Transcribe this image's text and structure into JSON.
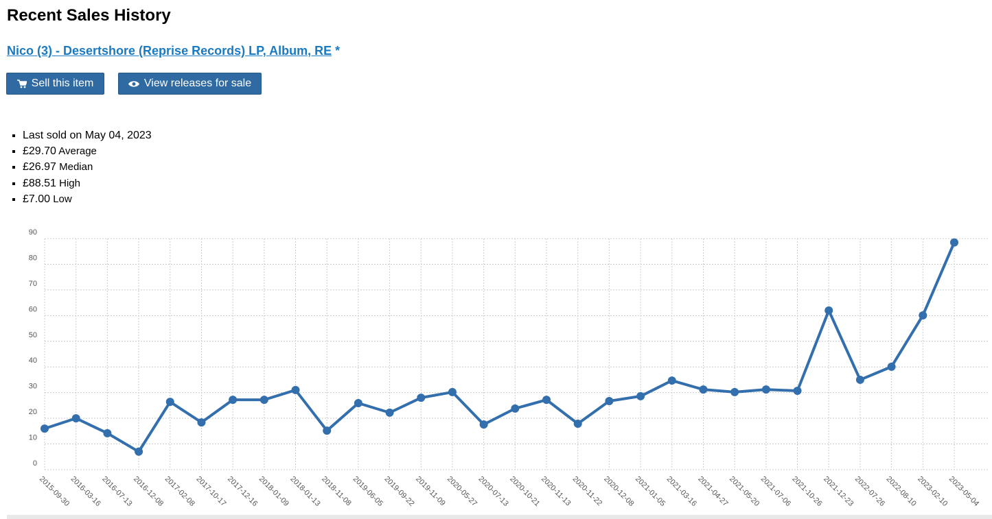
{
  "header": {
    "title": "Recent Sales History"
  },
  "release": {
    "link": "Nico (3) - Desertshore (Reprise Records) LP, Album, RE",
    "marker": "*"
  },
  "buttons": [
    "Sell this item",
    "View releases for sale"
  ],
  "stats": {
    "last_sold": "Last sold on May 04, 2023",
    "items": [
      {
        "value": "£29.70",
        "label": "Average"
      },
      {
        "value": "£26.97",
        "label": "Median"
      },
      {
        "value": "£88.51",
        "label": "High"
      },
      {
        "value": "£7.00",
        "label": "Low"
      }
    ]
  },
  "chart_data": {
    "type": "line",
    "categories": [
      "2015-09-30",
      "2016-03-16",
      "2016-07-13",
      "2016-12-08",
      "2017-02-08",
      "2017-10-17",
      "2017-12-16",
      "2018-01-09",
      "2018-01-13",
      "2018-11-08",
      "2019-06-05",
      "2019-09-22",
      "2019-11-09",
      "2020-05-27",
      "2020-07-13",
      "2020-10-21",
      "2020-11-13",
      "2020-11-22",
      "2020-12-08",
      "2021-01-05",
      "2021-03-16",
      "2021-04-27",
      "2021-05-20",
      "2021-07-06",
      "2021-10-26",
      "2021-12-23",
      "2022-07-26",
      "2022-08-10",
      "2023-02-10",
      "2023-05-04"
    ],
    "series": [
      {
        "color": "#336ead",
        "values": [
          16.0,
          20.0,
          14.2,
          7.0,
          26.4,
          18.4,
          27.2,
          27.2,
          31.0,
          15.2,
          25.9,
          22.2,
          28.0,
          30.2,
          17.6,
          23.8,
          27.2,
          17.9,
          26.7,
          28.6,
          34.7,
          31.2,
          30.2,
          31.2,
          30.7,
          62.0,
          35.0,
          40.1,
          60.1,
          88.51
        ]
      }
    ],
    "ylim": [
      0,
      90
    ],
    "yticks": [
      0,
      10,
      20,
      30,
      40,
      50,
      60,
      70,
      80,
      90
    ],
    "grid": true
  }
}
